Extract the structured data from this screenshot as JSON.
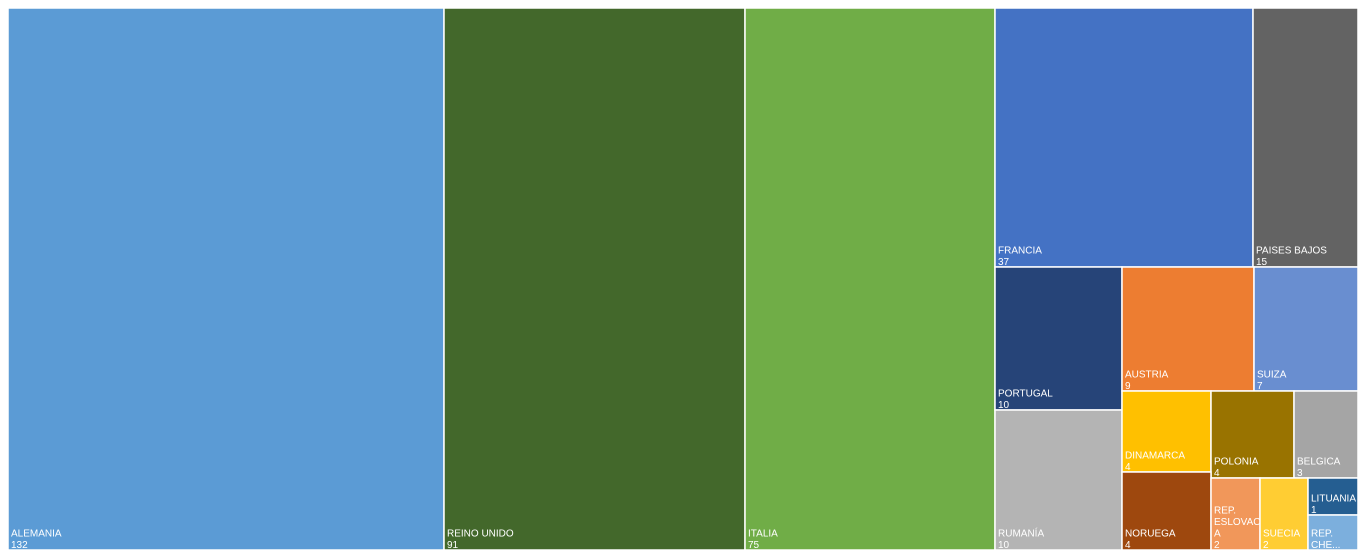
{
  "chart_data": {
    "type": "treemap",
    "items": [
      {
        "label": "ALEMANIA",
        "value": 132,
        "value_text": "132",
        "color": "#5B9BD5"
      },
      {
        "label": "REINO UNIDO",
        "value": 91,
        "value_text": "91",
        "color": "#43682B"
      },
      {
        "label": "ITALIA",
        "value": 75,
        "value_text": "75",
        "color": "#70AD47"
      },
      {
        "label": "FRANCIA",
        "value": 37,
        "value_text": "37",
        "color": "#4472C4"
      },
      {
        "label": "PAISES BAJOS",
        "value": 15,
        "value_text": "15",
        "color": "#636363"
      },
      {
        "label": "PORTUGAL",
        "value": 10,
        "value_text": "10",
        "color": "#264478"
      },
      {
        "label": "AUSTRIA",
        "value": 9,
        "value_text": "9",
        "color": "#ED7D31"
      },
      {
        "label": "SUIZA",
        "value": 7,
        "value_text": "7",
        "color": "#698ED0"
      },
      {
        "label": "RUMANÍA",
        "value": 10,
        "value_text": "10",
        "color": "#B4B4B4"
      },
      {
        "label": "DINAMARCA",
        "value": 4,
        "value_text": "4",
        "color": "#FFC000"
      },
      {
        "label": "POLONIA",
        "value": 4,
        "value_text": "4",
        "color": "#997300"
      },
      {
        "label": "BELGICA",
        "value": 3,
        "value_text": "3",
        "color": "#A5A5A5"
      },
      {
        "label": "NORUEGA",
        "value": 4,
        "value_text": "4",
        "color": "#9E480E"
      },
      {
        "label": "REP. ESLOVACA",
        "label_lines": [
          "REP.",
          "ESLOVAC",
          "A"
        ],
        "value": 2,
        "value_text": "2",
        "color": "#F1975A"
      },
      {
        "label": "SUECIA",
        "value": 2,
        "value_text": "2",
        "color": "#FFCD33"
      },
      {
        "label": "LITUANIA",
        "value": 1,
        "value_text": "1",
        "color": "#255E91"
      },
      {
        "label": "REP. CHE...",
        "label_lines": [
          "REP.",
          "CHE..."
        ],
        "value": 1,
        "value_text": "",
        "color": "#7CAFDD"
      }
    ]
  }
}
